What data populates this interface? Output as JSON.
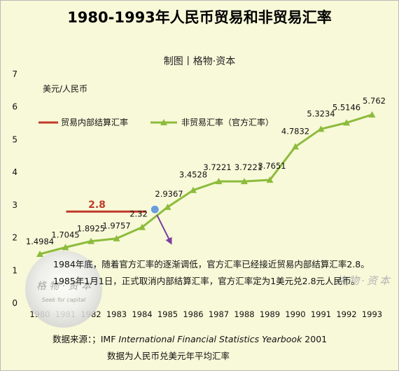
{
  "chart_data": {
    "type": "line",
    "title": "1980-1993年人民币贸易和非贸易汇率",
    "subtitle": "制图丨格物·资本",
    "ylabel": "美元/人民币",
    "ylim": [
      0,
      7
    ],
    "yticks": [
      "0",
      "1",
      "2",
      "3",
      "4",
      "5",
      "6",
      "7"
    ],
    "categories": [
      "1980",
      "1981",
      "1982",
      "1983",
      "1984",
      "1985",
      "1986",
      "1987",
      "1988",
      "1989",
      "1990",
      "1991",
      "1992",
      "1993"
    ],
    "series": [
      {
        "name": "非贸易汇率（官方汇率）",
        "color": "#8dbb3c",
        "marker": "triangle",
        "values": [
          1.4984,
          1.7045,
          1.8925,
          1.9757,
          2.32,
          2.9367,
          3.4528,
          3.7221,
          3.7221,
          3.7651,
          4.7832,
          5.3234,
          5.5146,
          5.762
        ],
        "labels": [
          "1.4984",
          "1.7045",
          "1.8925",
          "1.9757",
          "2.32",
          "2.9367",
          "3.4528",
          "3.7221",
          "3.7221",
          "3.7651",
          "4.7832",
          "5.3234",
          "5.5146",
          "5.762"
        ]
      },
      {
        "name": "贸易内部结算汇率",
        "color": "#c0392b",
        "marker": "none",
        "x_range": [
          "1981",
          "1984"
        ],
        "value": 2.8,
        "label": "2.8"
      }
    ],
    "annotations": [
      "1984年底，随着官方汇率的逐渐调低，官方汇率已经接近贸易内部结算汇率2.8。",
      "1985年1月1日，正式取消内部结算汇率，官方汇率定为1美元兑2.8元人民币。"
    ],
    "highlight_point_color": "#6a9fd8",
    "arrow_color": "#7b3fa0",
    "legend_position": "top-left",
    "grid": false
  },
  "footer": {
    "source_prefix": "数据来源：；IMF ",
    "source_title": "International Financial Statistics Yearbook",
    "source_suffix": " 2001",
    "note": "数据为人民币兑美元年平均汇率"
  },
  "watermark": {
    "cn": "格 物 · 资 本",
    "en": "Seek for capital"
  },
  "brand_logo": {
    "text": "格物·资本"
  }
}
